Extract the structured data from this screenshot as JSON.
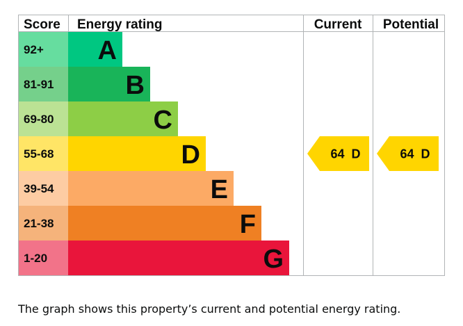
{
  "chart_data": {
    "type": "bar",
    "title": "",
    "headers": {
      "score": "Score",
      "energy_rating": "Energy rating",
      "current": "Current",
      "potential": "Potential"
    },
    "bands": [
      {
        "letter": "A",
        "score": "92+",
        "color": "#00c781",
        "score_bg": "#66dd9f",
        "text_color": "#0b0c0c"
      },
      {
        "letter": "B",
        "score": "81-91",
        "color": "#19b459",
        "score_bg": "#75d08b",
        "text_color": "#0b0c0c"
      },
      {
        "letter": "C",
        "score": "69-80",
        "color": "#8dce46",
        "score_bg": "#bbe294",
        "text_color": "#0b0c0c"
      },
      {
        "letter": "D",
        "score": "55-68",
        "color": "#ffd500",
        "score_bg": "#ffe566",
        "text_color": "#0b0c0c"
      },
      {
        "letter": "E",
        "score": "39-54",
        "color": "#fcaa65",
        "score_bg": "#fdcca3",
        "text_color": "#0b0c0c"
      },
      {
        "letter": "F",
        "score": "21-38",
        "color": "#ef8023",
        "score_bg": "#f5b37b",
        "text_color": "#0b0c0c"
      },
      {
        "letter": "G",
        "score": "1-20",
        "color": "#e9153b",
        "score_bg": "#f27389",
        "text_color": "#0b0c0c"
      }
    ],
    "current": {
      "score": 64,
      "letter": "D",
      "label": "64  D",
      "color": "#ffd500"
    },
    "potential": {
      "score": 64,
      "letter": "D",
      "label": "64  D",
      "color": "#ffd500"
    },
    "grid_color": "#b1b4b6"
  },
  "caption": "The graph shows this property’s current and potential energy rating."
}
